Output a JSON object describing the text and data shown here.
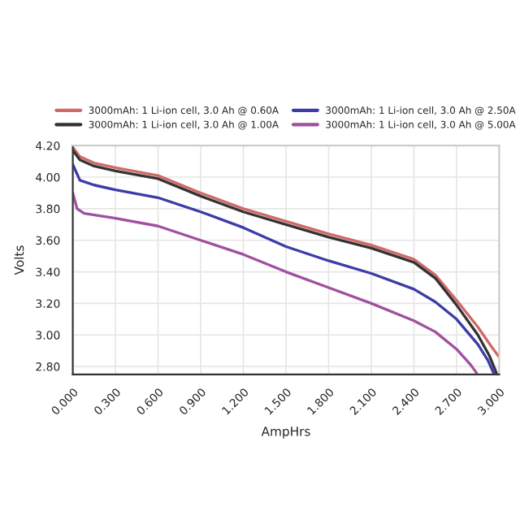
{
  "chart_data": {
    "type": "line",
    "xlabel": "AmpHrs",
    "ylabel": "Volts",
    "xlim": [
      0,
      3.0
    ],
    "ylim": [
      2.75,
      4.2
    ],
    "xticks": [
      {
        "value": 0,
        "label": "0.000"
      },
      {
        "value": 0.3,
        "label": "0.300"
      },
      {
        "value": 0.6,
        "label": "0.600"
      },
      {
        "value": 0.9,
        "label": "0.900"
      },
      {
        "value": 1.2,
        "label": "1.200"
      },
      {
        "value": 1.5,
        "label": "1.500"
      },
      {
        "value": 1.8,
        "label": "1.800"
      },
      {
        "value": 2.1,
        "label": "2.100"
      },
      {
        "value": 2.4,
        "label": "2.400"
      },
      {
        "value": 2.7,
        "label": "2.700"
      },
      {
        "value": 3.0,
        "label": "3.000"
      }
    ],
    "yticks": [
      {
        "value": 2.8,
        "label": "2.80"
      },
      {
        "value": 3.0,
        "label": "3.00"
      },
      {
        "value": 3.2,
        "label": "3.20"
      },
      {
        "value": 3.4,
        "label": "3.40"
      },
      {
        "value": 3.6,
        "label": "3.60"
      },
      {
        "value": 3.8,
        "label": "3.80"
      },
      {
        "value": 4.0,
        "label": "4.00"
      },
      {
        "value": 4.2,
        "label": "4.20"
      }
    ],
    "grid": true,
    "legend": "top",
    "marker": "none",
    "line_style": "solid",
    "series": [
      {
        "name": "3000mAh: 1 Li-ion cell, 3.0 Ah @ 0.60A",
        "color": "#d06a66",
        "x": [
          0,
          0.05,
          0.15,
          0.3,
          0.6,
          0.9,
          1.2,
          1.5,
          1.8,
          2.1,
          2.4,
          2.55,
          2.7,
          2.85,
          2.95,
          3.0
        ],
        "values": [
          4.19,
          4.13,
          4.09,
          4.06,
          4.01,
          3.9,
          3.8,
          3.72,
          3.64,
          3.57,
          3.48,
          3.38,
          3.22,
          3.05,
          2.92,
          2.86
        ]
      },
      {
        "name": "3000mAh: 1 Li-ion cell, 3.0 Ah @ 1.00A",
        "color": "#333333",
        "x": [
          0,
          0.05,
          0.15,
          0.3,
          0.6,
          0.9,
          1.2,
          1.5,
          1.8,
          2.1,
          2.4,
          2.55,
          2.7,
          2.85,
          2.93,
          2.98
        ],
        "values": [
          4.17,
          4.11,
          4.07,
          4.04,
          3.99,
          3.88,
          3.78,
          3.7,
          3.62,
          3.55,
          3.46,
          3.36,
          3.19,
          3.0,
          2.87,
          2.76
        ]
      },
      {
        "name": "3000mAh: 1 Li-ion cell, 3.0 Ah @ 2.50A",
        "color": "#3c3ca8",
        "x": [
          0,
          0.05,
          0.15,
          0.3,
          0.6,
          0.9,
          1.2,
          1.5,
          1.8,
          2.1,
          2.4,
          2.55,
          2.7,
          2.85,
          2.92,
          2.96
        ],
        "values": [
          4.08,
          3.98,
          3.95,
          3.92,
          3.87,
          3.78,
          3.68,
          3.56,
          3.47,
          3.39,
          3.29,
          3.21,
          3.1,
          2.94,
          2.84,
          2.76
        ]
      },
      {
        "name": "3000mAh: 1 Li-ion cell, 3.0 Ah @ 5.00A",
        "color": "#a050a0",
        "x": [
          0,
          0.03,
          0.08,
          0.3,
          0.6,
          0.9,
          1.2,
          1.5,
          1.8,
          2.1,
          2.4,
          2.55,
          2.7,
          2.8,
          2.84
        ],
        "values": [
          3.9,
          3.8,
          3.77,
          3.74,
          3.69,
          3.6,
          3.51,
          3.4,
          3.3,
          3.2,
          3.09,
          3.02,
          2.91,
          2.81,
          2.76
        ]
      }
    ]
  }
}
